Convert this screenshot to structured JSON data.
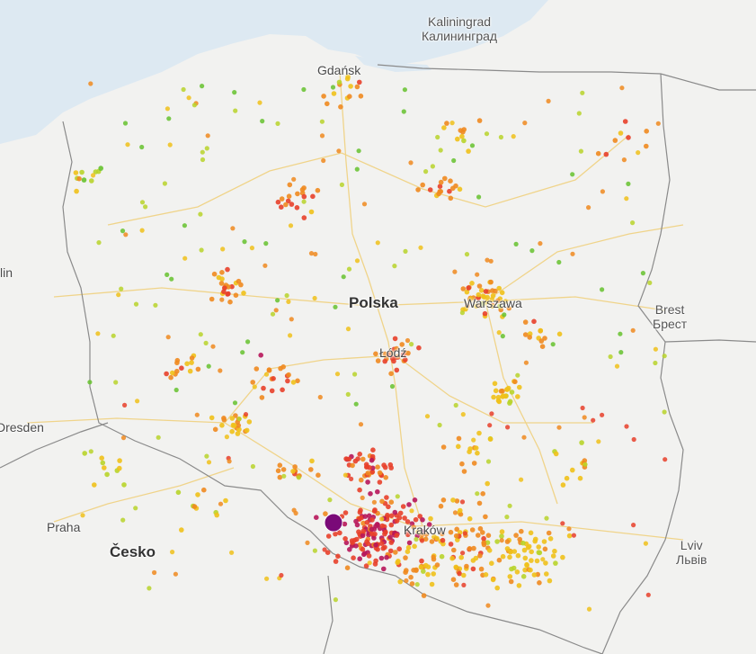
{
  "map": {
    "country_labels": [
      {
        "key": "polska",
        "text": "Polska"
      },
      {
        "key": "cesko",
        "text": "Česko"
      }
    ],
    "city_labels": [
      {
        "key": "gdansk",
        "text": "Gdańsk"
      },
      {
        "key": "warszawa",
        "text": "Warszawa"
      },
      {
        "key": "lodz",
        "text": "Łódź"
      },
      {
        "key": "krakow",
        "text": "Kraków"
      },
      {
        "key": "praha",
        "text": "Praha"
      },
      {
        "key": "dresden",
        "text": "Dresden"
      },
      {
        "key": "berlin_partial",
        "text": "lin"
      }
    ],
    "foreign_labels": [
      {
        "key": "kaliningrad",
        "line1": "Kaliningrad",
        "line2": "Калининград"
      },
      {
        "key": "brest",
        "line1": "Brest",
        "line2": "Брест"
      },
      {
        "key": "lviv",
        "line1": "Lviv",
        "line2": "Львів"
      }
    ],
    "colors": {
      "land": "#f2f2f0",
      "sea": "#dde9f2",
      "border": "#8a8a8a",
      "road": "#f0d48a",
      "marker_purple": "#7a0a78",
      "dot_scale": [
        "#66c22e",
        "#b8d42a",
        "#f0c11a",
        "#f08a1f",
        "#e8402a",
        "#b7165a"
      ]
    },
    "selected_marker": {
      "color": "#7a0a78"
    }
  }
}
